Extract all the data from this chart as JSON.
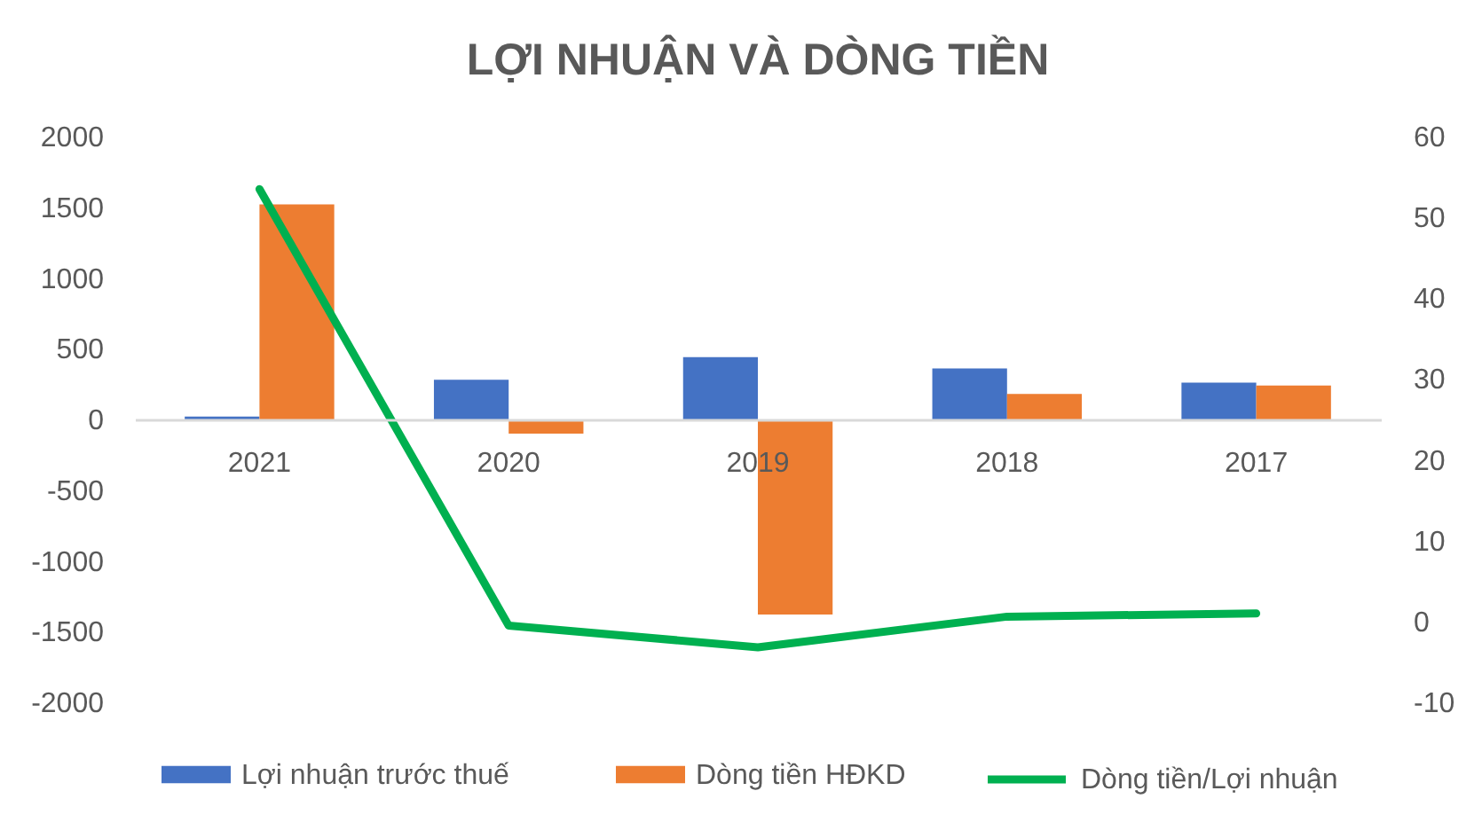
{
  "chart_data": {
    "type": "bar",
    "title": "LỢI NHUẬN VÀ DÒNG TIỀN",
    "categories": [
      "2021",
      "2020",
      "2019",
      "2018",
      "2017"
    ],
    "series": [
      {
        "name": "Lợi nhuận trước thuế",
        "color": "#4472c4",
        "values": [
          20,
          280,
          440,
          360,
          260
        ]
      },
      {
        "name": "Dòng tiền HĐKD",
        "color": "#ed7d31",
        "values": [
          1520,
          -100,
          -1380,
          180,
          240
        ]
      },
      {
        "name": "Dòng tiền/Lợi nhuận",
        "type": "line",
        "axis": "y2",
        "color": "#00b050",
        "values": [
          53.5,
          -0.5,
          -3.2,
          0.6,
          1.0
        ]
      }
    ],
    "ylim": [
      -2000,
      2000
    ],
    "yticks": [
      -2000,
      -1500,
      -1000,
      -500,
      0,
      500,
      1000,
      1500,
      2000
    ],
    "y2lim": [
      -10,
      60
    ],
    "y2ticks": [
      -10,
      0,
      10,
      20,
      30,
      40,
      50,
      60
    ],
    "legend": "bottom"
  }
}
